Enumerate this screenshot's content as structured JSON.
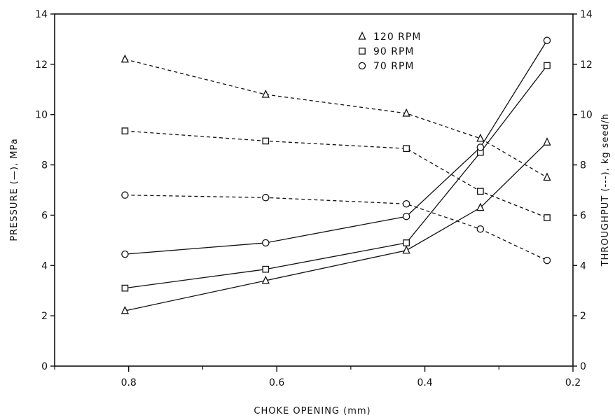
{
  "chart_data": {
    "type": "line",
    "xlabel": "CHOKE OPENING (mm)",
    "ylabel_left": "PRESSURE (—), MPa",
    "ylabel_right": "THROUGHPUT (---), kg seed/h",
    "x_ticks": [
      "0.8",
      "0.6",
      "0.4",
      "0.2"
    ],
    "y_ticks": [
      "0",
      "2",
      "4",
      "6",
      "8",
      "10",
      "12",
      "14"
    ],
    "x_range": [
      0.9,
      0.2
    ],
    "y_range": [
      0,
      14
    ],
    "x_reversed": true,
    "grid": false,
    "legend_position": "top-right",
    "legend": [
      {
        "label": "120 RPM",
        "marker": "triangle"
      },
      {
        "label": "90 RPM",
        "marker": "square"
      },
      {
        "label": "70 RPM",
        "marker": "circle"
      }
    ],
    "x": [
      0.805,
      0.615,
      0.425,
      0.325,
      0.235
    ],
    "series": [
      {
        "name": "120 RPM",
        "quantity": "pressure",
        "line": "solid",
        "marker": "triangle",
        "values": [
          2.2,
          3.4,
          4.6,
          6.3,
          8.9
        ]
      },
      {
        "name": "90 RPM",
        "quantity": "pressure",
        "line": "solid",
        "marker": "square",
        "values": [
          3.1,
          3.85,
          4.9,
          8.5,
          11.95
        ]
      },
      {
        "name": "70 RPM",
        "quantity": "pressure",
        "line": "solid",
        "marker": "circle",
        "values": [
          4.45,
          4.9,
          5.95,
          8.7,
          12.95
        ]
      },
      {
        "name": "120 RPM",
        "quantity": "throughput",
        "line": "dashed",
        "marker": "triangle",
        "values": [
          12.2,
          10.8,
          10.05,
          9.05,
          7.5
        ]
      },
      {
        "name": "90 RPM",
        "quantity": "throughput",
        "line": "dashed",
        "marker": "square",
        "values": [
          9.35,
          8.95,
          8.65,
          6.95,
          5.9
        ]
      },
      {
        "name": "70 RPM",
        "quantity": "throughput",
        "line": "dashed",
        "marker": "circle",
        "values": [
          6.8,
          6.7,
          6.45,
          5.45,
          4.2
        ]
      }
    ]
  }
}
